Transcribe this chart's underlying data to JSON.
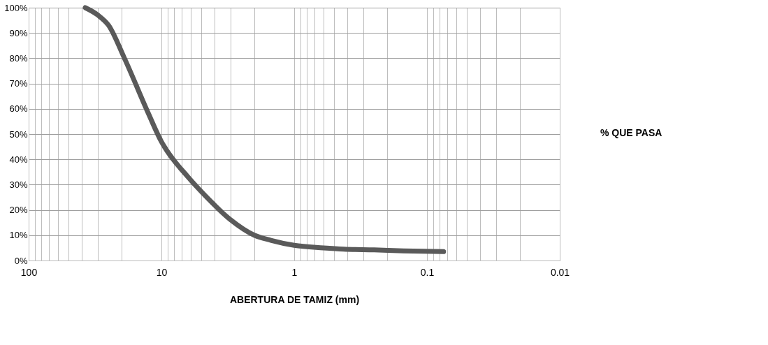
{
  "chart_data": {
    "type": "line",
    "xlabel": "ABERTURA DE TAMIZ (mm)",
    "log": "x",
    "xlim": [
      100,
      0.01
    ],
    "xticks": [
      100,
      {
        "value": 90,
        "label": null
      },
      {
        "value": 80,
        "label": null
      },
      {
        "value": 70,
        "label": null
      },
      {
        "value": 60,
        "label": null
      },
      {
        "value": 50,
        "label": null
      },
      {
        "value": 40,
        "label": null
      },
      {
        "value": 30,
        "label": null
      },
      {
        "value": 20,
        "label": null
      },
      10,
      {
        "value": 9,
        "label": null
      },
      {
        "value": 8,
        "label": null
      },
      {
        "value": 7,
        "label": null
      },
      {
        "value": 6,
        "label": null
      },
      {
        "value": 5,
        "label": null
      },
      {
        "value": 4,
        "label": null
      },
      {
        "value": 3,
        "label": null
      },
      {
        "value": 2,
        "label": null
      },
      1,
      {
        "value": 0.9,
        "label": null
      },
      {
        "value": 0.8,
        "label": null
      },
      {
        "value": 0.7,
        "label": null
      },
      {
        "value": 0.6,
        "label": null
      },
      {
        "value": 0.5,
        "label": null
      },
      {
        "value": 0.4,
        "label": null
      },
      {
        "value": 0.3,
        "label": null
      },
      {
        "value": 0.2,
        "label": null
      },
      0.1,
      {
        "value": 0.09,
        "label": null
      },
      {
        "value": 0.08,
        "label": null
      },
      {
        "value": 0.07,
        "label": null
      },
      {
        "value": 0.06,
        "label": null
      },
      {
        "value": 0.05,
        "label": null
      },
      {
        "value": 0.04,
        "label": null
      },
      {
        "value": 0.03,
        "label": null
      },
      {
        "value": 0.02,
        "label": null
      },
      0.01
    ],
    "ylim": [
      0,
      100
    ],
    "yticks": [
      {
        "value": 0,
        "label": "0%"
      },
      {
        "value": 10,
        "label": "10%"
      },
      {
        "value": 20,
        "label": "20%"
      },
      {
        "value": 30,
        "label": "30%"
      },
      {
        "value": 40,
        "label": "40%"
      },
      {
        "value": 50,
        "label": "50%"
      },
      {
        "value": 60,
        "label": "60%"
      },
      {
        "value": 70,
        "label": "70%"
      },
      {
        "value": 80,
        "label": "80%"
      },
      {
        "value": 90,
        "label": "90%"
      },
      {
        "value": 100,
        "label": "100%"
      }
    ],
    "grid": true,
    "legend": "right",
    "line_style": "solid",
    "series": [
      {
        "name": "% QUE PASA",
        "color": "#5a5a5a",
        "x": [
          37.5,
          30,
          25,
          19,
          12.5,
          10,
          9.5,
          6.3,
          4.75,
          3,
          2,
          1.5,
          1,
          0.6,
          0.425,
          0.25,
          0.15,
          0.075
        ],
        "values": [
          100,
          97,
          93,
          80,
          58,
          47,
          45,
          33,
          26,
          16,
          10,
          8,
          6,
          5,
          4.5,
          4.2,
          3.8,
          3.5
        ]
      }
    ]
  }
}
